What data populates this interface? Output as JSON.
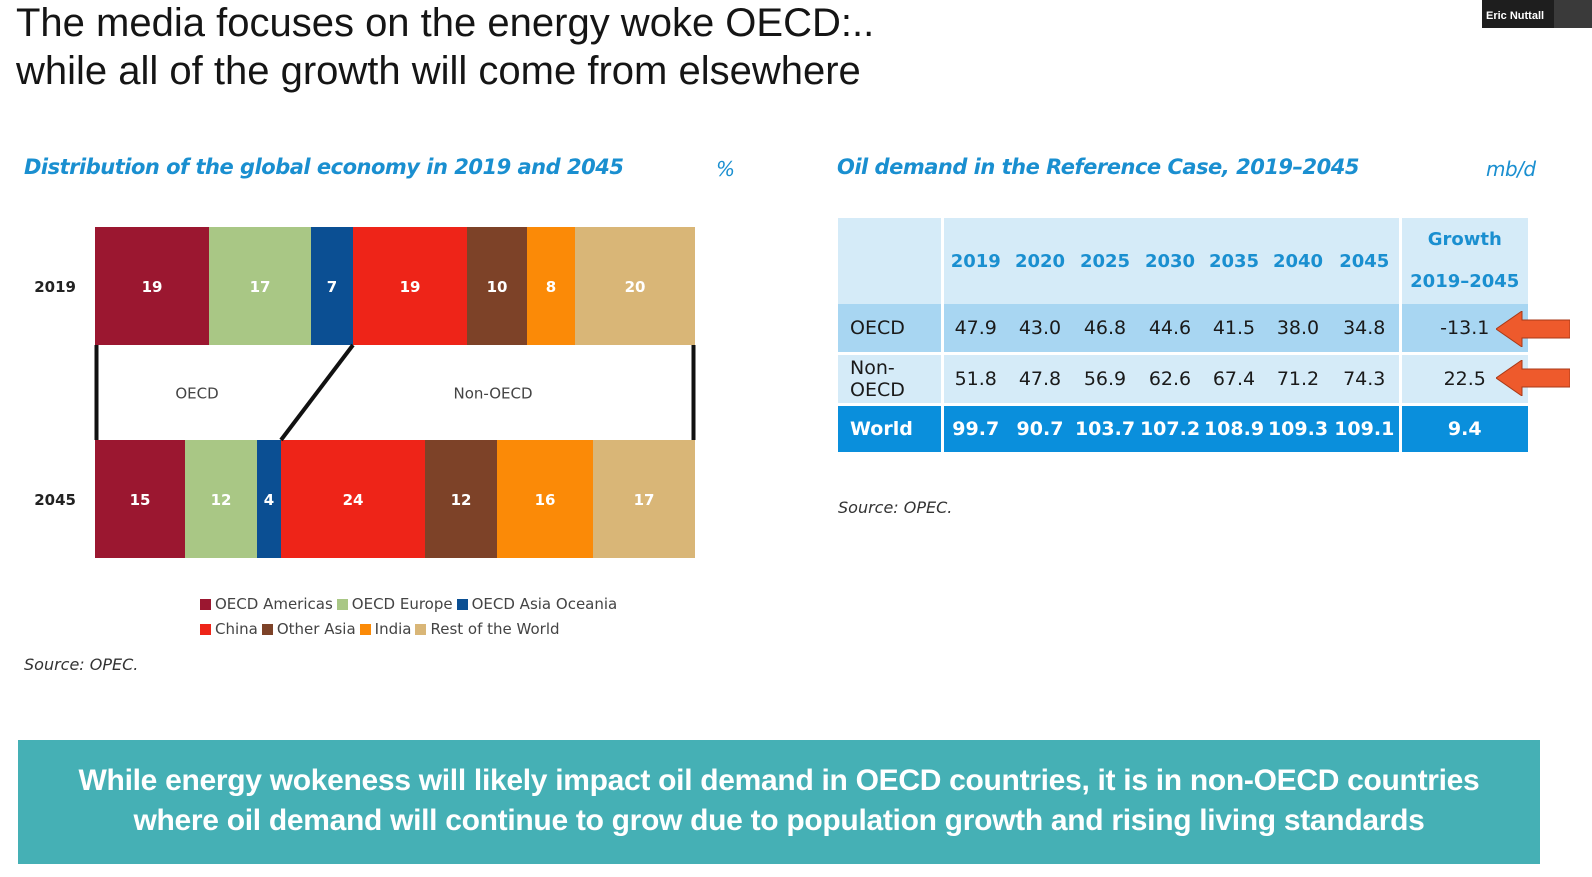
{
  "slide": {
    "title_line1": "The media focuses on the energy woke OECD:..",
    "title_line2": "while all of the growth will come from elsewhere",
    "presenter_name": "Eric Nuttall",
    "banner_line1": "While energy wokeness will likely impact oil demand in OECD countries, it is in non-OECD countries",
    "banner_line2": "where oil demand will continue to grow due to population growth and rising living standards"
  },
  "chart_data": [
    {
      "type": "bar",
      "orientation": "horizontal-stacked",
      "title": "Distribution of the global economy in 2019 and 2045",
      "unit": "%",
      "categories": [
        "2019",
        "2045"
      ],
      "series": [
        {
          "name": "OECD Americas",
          "color": "#9b1730",
          "values": [
            19,
            15
          ]
        },
        {
          "name": "OECD Europe",
          "color": "#a9c785",
          "values": [
            17,
            12
          ]
        },
        {
          "name": "OECD Asia Oceania",
          "color": "#0b4f93",
          "values": [
            7,
            4
          ]
        },
        {
          "name": "China",
          "color": "#ee2418",
          "values": [
            19,
            24
          ]
        },
        {
          "name": "Other Asia",
          "color": "#7d4228",
          "values": [
            10,
            12
          ]
        },
        {
          "name": "India",
          "color": "#fb8a07",
          "values": [
            8,
            16
          ]
        },
        {
          "name": "Rest of the World",
          "color": "#d9b677",
          "values": [
            20,
            17
          ]
        }
      ],
      "group_labels": [
        "OECD",
        "Non-OECD"
      ],
      "source": "Source: OPEC."
    }
  ],
  "table": {
    "title": "Oil demand in the Reference Case, 2019–2045",
    "unit": "mb/d",
    "years": [
      "2019",
      "2020",
      "2025",
      "2030",
      "2035",
      "2040",
      "2045"
    ],
    "growth_header_line1": "Growth",
    "growth_header_line2": "2019–2045",
    "rows": [
      {
        "label": "OECD",
        "values": [
          "47.9",
          "43.0",
          "46.8",
          "44.6",
          "41.5",
          "38.0",
          "34.8"
        ],
        "growth": "-13.1"
      },
      {
        "label": "Non-OECD",
        "values": [
          "51.8",
          "47.8",
          "56.9",
          "62.6",
          "67.4",
          "71.2",
          "74.3"
        ],
        "growth": "22.5"
      },
      {
        "label": "World",
        "values": [
          "99.7",
          "90.7",
          "103.7",
          "107.2",
          "108.9",
          "109.3",
          "109.1"
        ],
        "growth": "9.4"
      }
    ],
    "source": "Source: OPEC.",
    "arrow_color": "#ee5a2c"
  }
}
